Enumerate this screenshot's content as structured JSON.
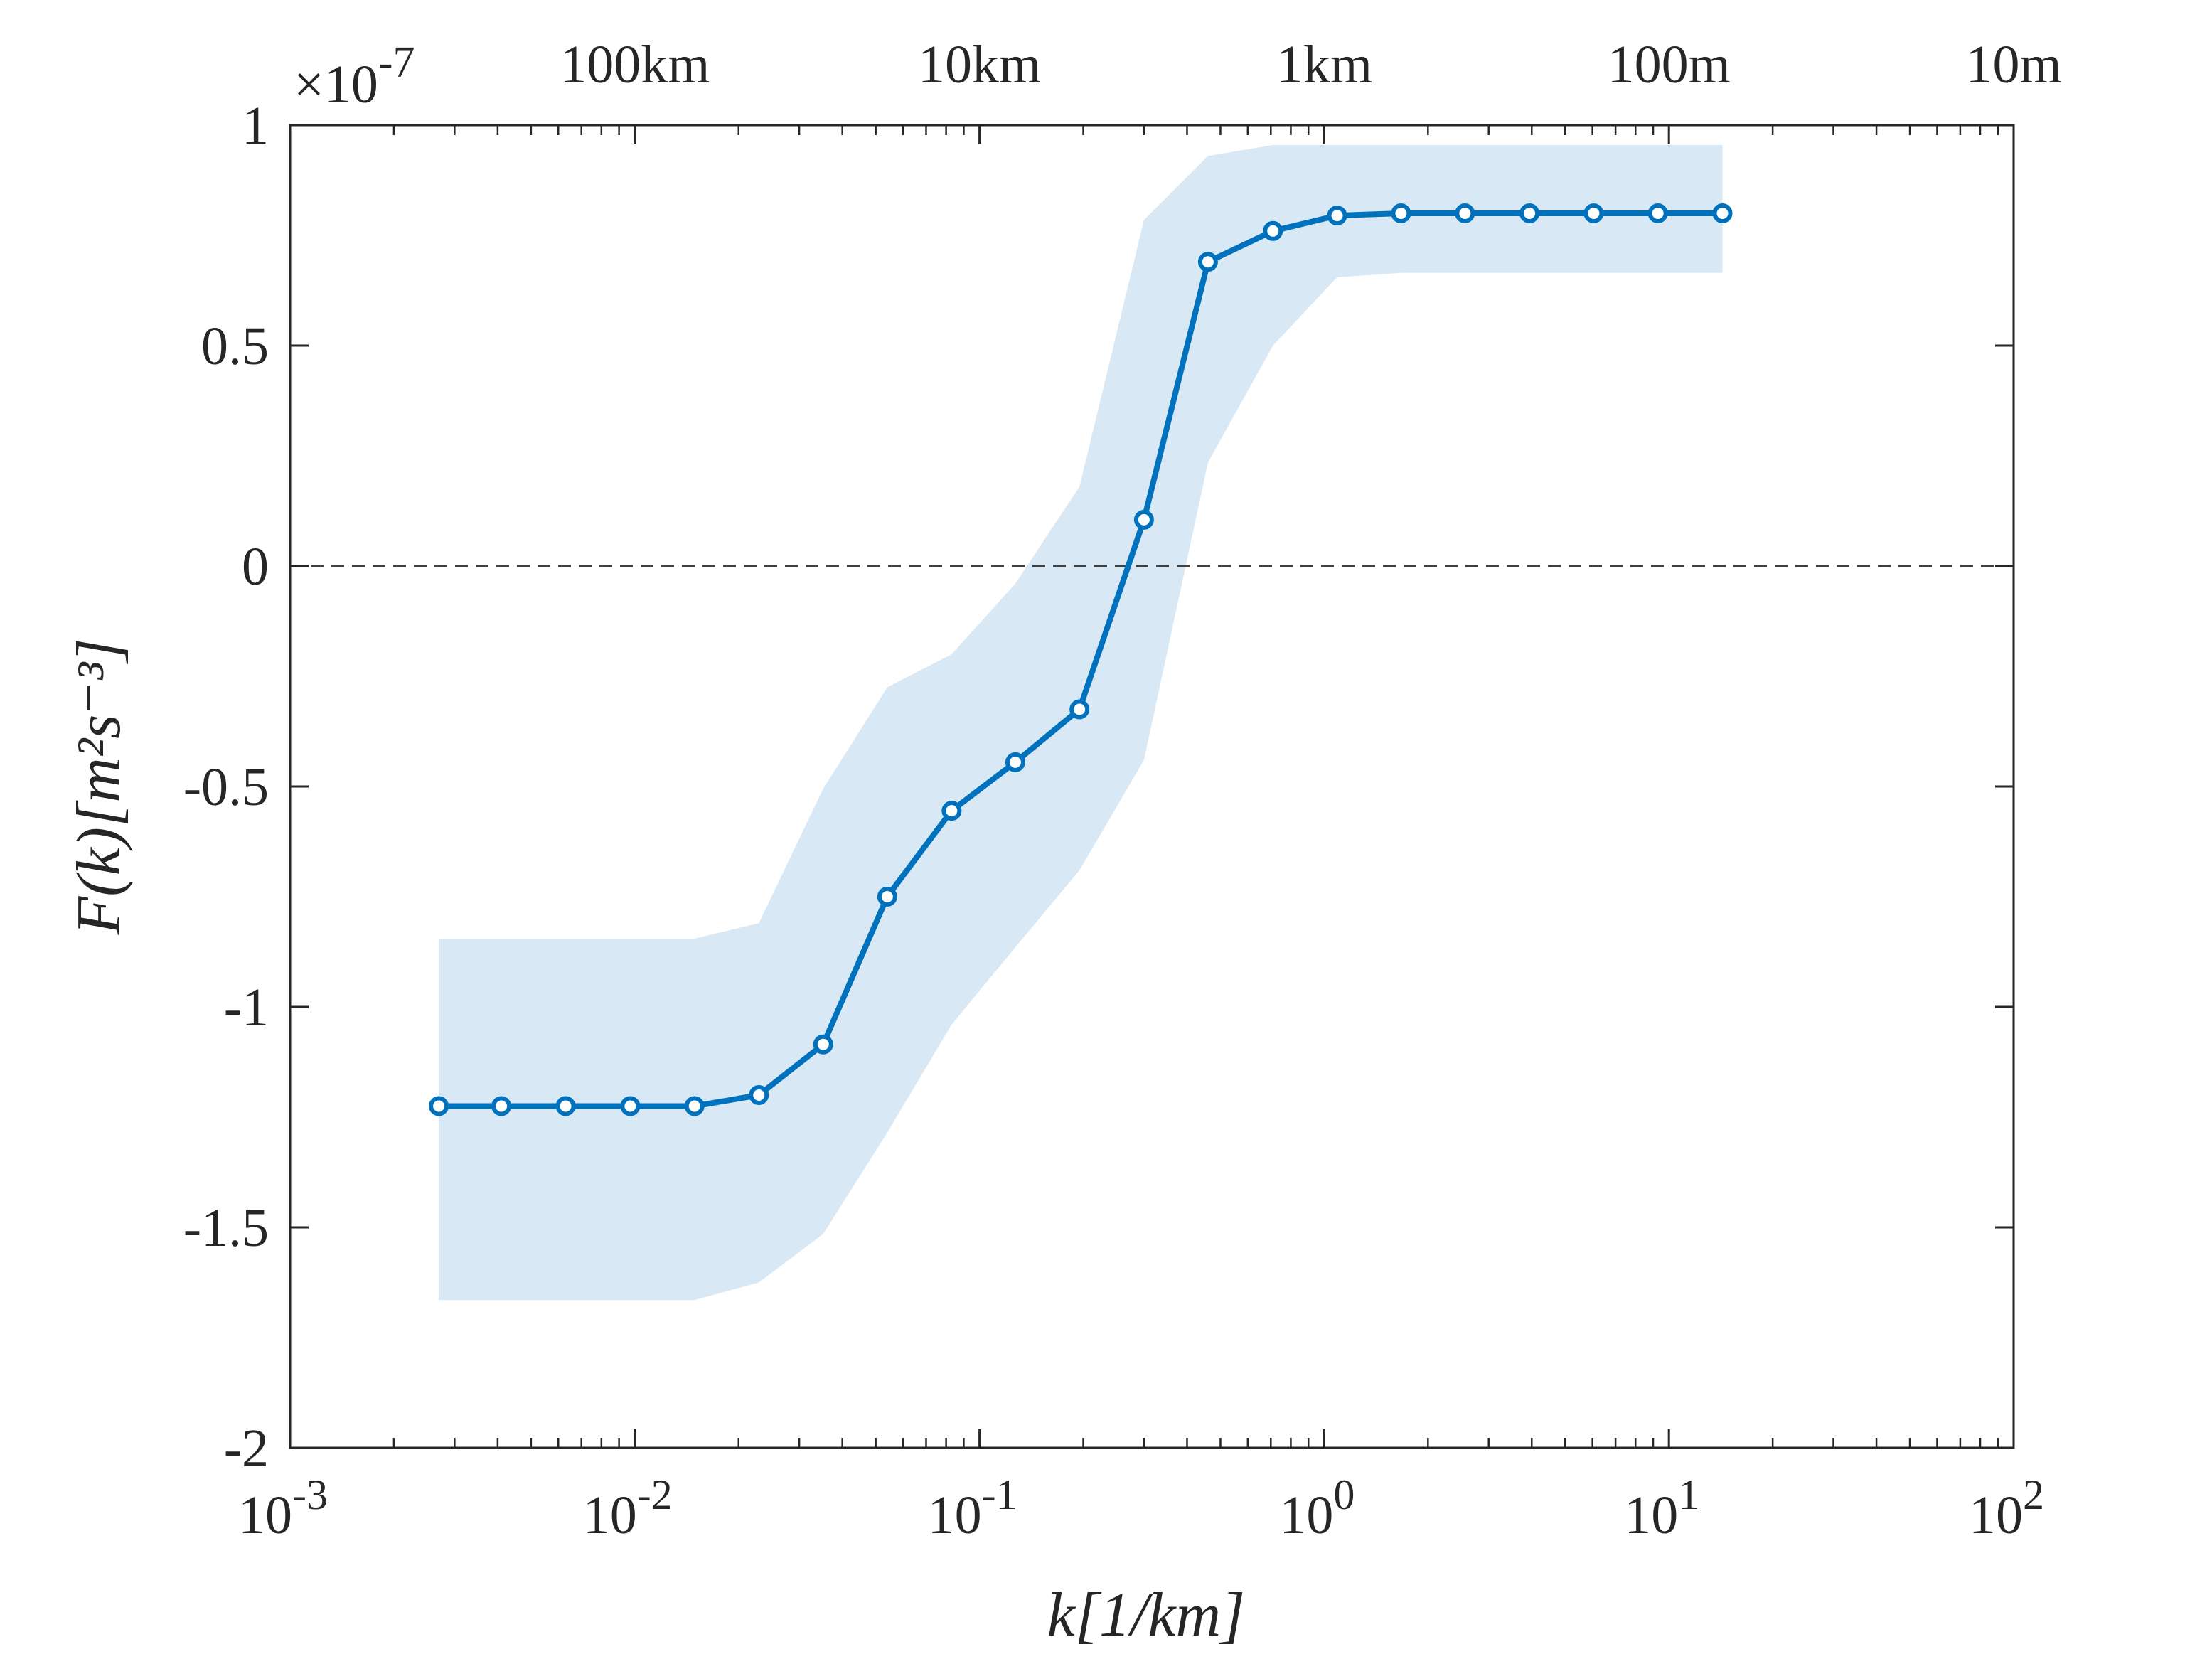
{
  "chart_data": {
    "type": "line",
    "xscale": "log",
    "xlim": [
      0.001,
      100
    ],
    "ylim": [
      -2,
      1
    ],
    "y_multiplier_label": {
      "base": "×10",
      "exponent": "-7"
    },
    "xlabel": "k[1/km]",
    "ylabel": "F(k)[m²s⁻³]",
    "x_ticks": [
      {
        "base": "10",
        "exp": "-3",
        "value": 0.001
      },
      {
        "base": "10",
        "exp": "-2",
        "value": 0.01
      },
      {
        "base": "10",
        "exp": "-1",
        "value": 0.1
      },
      {
        "base": "10",
        "exp": "0",
        "value": 1
      },
      {
        "base": "10",
        "exp": "1",
        "value": 10
      },
      {
        "base": "10",
        "exp": "2",
        "value": 100
      }
    ],
    "y_ticks": [
      {
        "label": "1",
        "value": 1
      },
      {
        "label": "0.5",
        "value": 0.5
      },
      {
        "label": "0",
        "value": 0
      },
      {
        "label": "-0.5",
        "value": -0.5
      },
      {
        "label": "-1",
        "value": -1
      },
      {
        "label": "-1.5",
        "value": -1.5
      },
      {
        "label": "-2",
        "value": -2
      }
    ],
    "top_ticks": [
      {
        "label": "100km",
        "value": 0.01
      },
      {
        "label": "10km",
        "value": 0.1
      },
      {
        "label": "1km",
        "value": 1
      },
      {
        "label": "100m",
        "value": 10
      },
      {
        "label": "10m",
        "value": 100
      }
    ],
    "zero_line": {
      "y": 0,
      "style": "dashed"
    },
    "series": [
      {
        "color": "#0072BD",
        "band_color": "#d9e8f5",
        "marker": "circle",
        "x": [
          0.0027,
          0.0041,
          0.0063,
          0.0097,
          0.0149,
          0.0229,
          0.0352,
          0.054,
          0.083,
          0.127,
          0.195,
          0.3,
          0.46,
          0.71,
          1.09,
          1.67,
          2.56,
          3.94,
          6.05,
          9.29,
          14.3
        ],
        "y": [
          -1.225,
          -1.225,
          -1.225,
          -1.225,
          -1.225,
          -1.2,
          -1.085,
          -0.75,
          -0.555,
          -0.445,
          -0.325,
          0.105,
          0.69,
          0.76,
          0.795,
          0.8,
          0.8,
          0.8,
          0.8,
          0.8,
          0.8
        ],
        "upper": [
          -0.845,
          -0.845,
          -0.845,
          -0.845,
          -0.845,
          -0.81,
          -0.505,
          -0.275,
          -0.2,
          -0.04,
          0.18,
          0.785,
          0.93,
          0.955,
          0.955,
          0.955,
          0.955,
          0.955,
          0.955,
          0.955,
          0.955
        ],
        "lower": [
          -1.665,
          -1.665,
          -1.665,
          -1.665,
          -1.665,
          -1.625,
          -1.515,
          -1.285,
          -1.04,
          -0.865,
          -0.69,
          -0.44,
          0.235,
          0.5,
          0.655,
          0.665,
          0.665,
          0.665,
          0.665,
          0.665,
          0.665
        ]
      }
    ],
    "grid": false,
    "legend": "none"
  }
}
